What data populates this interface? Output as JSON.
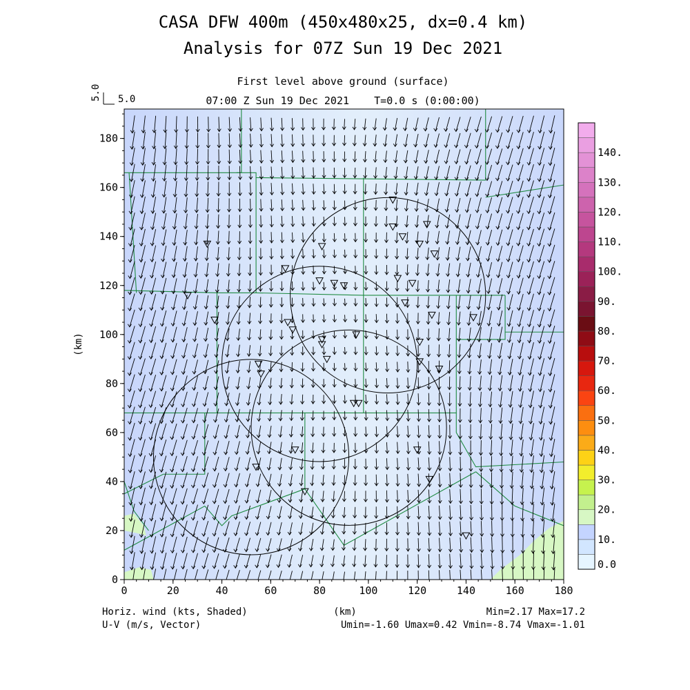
{
  "header": {
    "title_line1": "CASA DFW 400m (450x480x25, dx=0.4 km)",
    "title_line2": "Analysis for 07Z Sun 19 Dec 2021",
    "subtitle_line1": "First level above ground (surface)",
    "subtitle_line2": "07:00 Z Sun 19 Dec 2021    T=0.0 s (0:00:00)",
    "ref_vector_top": "5.0",
    "ref_vector_side": "5.0"
  },
  "footer": {
    "left_line1": "Horiz. wind (kts, Shaded)",
    "left_line2": "U-V (m/s, Vector)",
    "center": "(km)",
    "right_line1": "Min=2.17 Max=17.2",
    "right_line2": "Umin=-1.60 Umax=0.42 Vmin=-8.74 Vmax=-1.01"
  },
  "chart_data": {
    "type": "heatmap",
    "xlabel": "",
    "ylabel": "(km)",
    "xlim": [
      0,
      180
    ],
    "ylim": [
      0,
      192
    ],
    "x_ticks": [
      0,
      20,
      40,
      60,
      80,
      100,
      120,
      140,
      160,
      180
    ],
    "y_ticks": [
      0,
      20,
      40,
      60,
      80,
      100,
      120,
      140,
      160,
      180
    ],
    "field_min": 2.17,
    "field_max": 17.2,
    "u_range": [
      -1.6,
      0.42
    ],
    "v_range": [
      -8.74,
      -1.01
    ],
    "vector_type": "wind-arrows",
    "colorbar": {
      "labels": [
        "0.0",
        "10.",
        "20.",
        "30.",
        "40.",
        "50.",
        "60.",
        "70.",
        "80.",
        "90.",
        "100.",
        "110.",
        "120.",
        "130.",
        "140."
      ],
      "level_step": 5,
      "colors": [
        "#e6f5ff",
        "#d2e6ff",
        "#c4d4ff",
        "#d7f7c4",
        "#c3f08e",
        "#c6f24e",
        "#f2ee2c",
        "#fdd216",
        "#fbab18",
        "#fd8e10",
        "#fa6f10",
        "#fa4412",
        "#e82710",
        "#d6180e",
        "#b80e0e",
        "#8f0c15",
        "#6a0d14",
        "#7a1430",
        "#8a1c45",
        "#9b2258",
        "#a82c6c",
        "#b4397e",
        "#bd468f",
        "#c6549e",
        "#cd63ad",
        "#d572bc",
        "#dc82c9",
        "#e392d6",
        "#ea9fe1",
        "#f2acec"
      ]
    },
    "radars": [
      {
        "center": [
          52,
          50
        ],
        "radius": 40
      },
      {
        "center": [
          80,
          88
        ],
        "radius": 40
      },
      {
        "center": [
          92,
          62
        ],
        "radius": 40
      },
      {
        "center": [
          108,
          116
        ],
        "radius": 40
      }
    ],
    "station_markers": [
      [
        34,
        137
      ],
      [
        26,
        116
      ],
      [
        37,
        106
      ],
      [
        55,
        88
      ],
      [
        56,
        84
      ],
      [
        66,
        127
      ],
      [
        67,
        105
      ],
      [
        69,
        102
      ],
      [
        81,
        136
      ],
      [
        80,
        122
      ],
      [
        86,
        121
      ],
      [
        90,
        120
      ],
      [
        81,
        98
      ],
      [
        81,
        96
      ],
      [
        83,
        90
      ],
      [
        95,
        100
      ],
      [
        94,
        72
      ],
      [
        96,
        72
      ],
      [
        110,
        155
      ],
      [
        110,
        144
      ],
      [
        114,
        140
      ],
      [
        112,
        123
      ],
      [
        115,
        113
      ],
      [
        118,
        121
      ],
      [
        124,
        145
      ],
      [
        121,
        137
      ],
      [
        127,
        133
      ],
      [
        126,
        108
      ],
      [
        121,
        97
      ],
      [
        121,
        89
      ],
      [
        129,
        86
      ],
      [
        143,
        107
      ],
      [
        54,
        46
      ],
      [
        70,
        53
      ],
      [
        74,
        36
      ],
      [
        120,
        53
      ],
      [
        125,
        41
      ],
      [
        140,
        18
      ]
    ],
    "county_lines": [
      [
        [
          0,
          166
        ],
        [
          48,
          166
        ],
        [
          48,
          192
        ]
      ],
      [
        [
          46,
          166
        ],
        [
          54,
          166
        ],
        [
          54,
          164
        ],
        [
          148,
          163
        ],
        [
          148,
          192
        ]
      ],
      [
        [
          148,
          156
        ],
        [
          180,
          161
        ]
      ],
      [
        [
          0,
          118
        ],
        [
          38,
          117
        ],
        [
          38,
          68
        ],
        [
          0,
          68
        ]
      ],
      [
        [
          38,
          117
        ],
        [
          54,
          117
        ],
        [
          54,
          164
        ]
      ],
      [
        [
          54,
          117
        ],
        [
          98,
          116
        ],
        [
          98,
          164
        ]
      ],
      [
        [
          98,
          116
        ],
        [
          156,
          116
        ]
      ],
      [
        [
          98,
          116
        ],
        [
          98,
          68
        ],
        [
          38,
          68
        ]
      ],
      [
        [
          98,
          68
        ],
        [
          136,
          68
        ],
        [
          136,
          116
        ]
      ],
      [
        [
          136,
          98
        ],
        [
          156,
          98
        ],
        [
          156,
          116
        ]
      ],
      [
        [
          156,
          101
        ],
        [
          180,
          101
        ]
      ],
      [
        [
          136,
          68
        ],
        [
          136,
          60
        ],
        [
          144,
          46
        ],
        [
          180,
          48
        ]
      ],
      [
        [
          33,
          68
        ],
        [
          33,
          43
        ],
        [
          16,
          43
        ],
        [
          0,
          35
        ]
      ],
      [
        [
          0,
          12
        ],
        [
          33,
          30
        ],
        [
          40,
          22
        ],
        [
          44,
          26
        ],
        [
          74,
          37
        ]
      ],
      [
        [
          74,
          37
        ],
        [
          74,
          68
        ]
      ],
      [
        [
          74,
          37
        ],
        [
          90,
          14
        ],
        [
          144,
          44
        ]
      ],
      [
        [
          144,
          44
        ],
        [
          160,
          30
        ],
        [
          180,
          22
        ]
      ],
      [
        [
          2,
          166
        ],
        [
          5,
          117
        ]
      ],
      [
        [
          0,
          40
        ],
        [
          4,
          28
        ],
        [
          10,
          20
        ]
      ]
    ]
  }
}
